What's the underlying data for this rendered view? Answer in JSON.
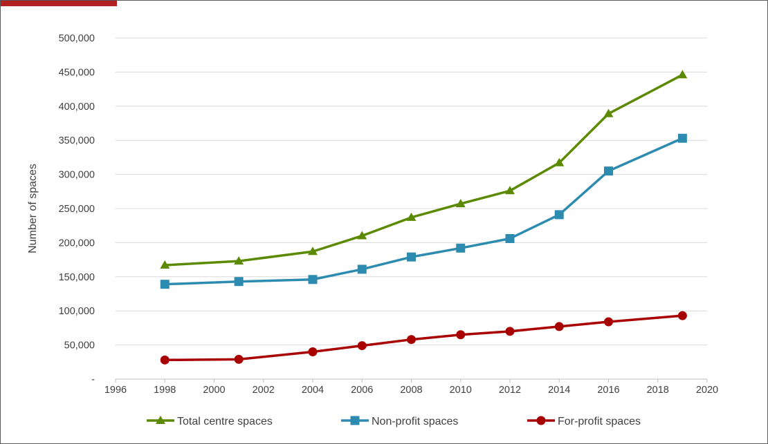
{
  "colors": {
    "total": "#5b8a00",
    "nonprofit": "#2e8bb0",
    "forprofit": "#a80000",
    "grid": "#d9d9d9",
    "accent_tab": "#b22222"
  },
  "chart_data": {
    "type": "line",
    "title": "",
    "xlabel": "",
    "ylabel": "Number of spaces",
    "xlim": [
      1996,
      2020
    ],
    "ylim": [
      0,
      500000
    ],
    "x_ticks": [
      1996,
      1998,
      2000,
      2002,
      2004,
      2006,
      2008,
      2010,
      2012,
      2014,
      2016,
      2018,
      2020
    ],
    "x_tick_labels": [
      "1996",
      "1998",
      "2000",
      "2002",
      "2004",
      "2006",
      "2008",
      "2010",
      "2012",
      "2014",
      "2016",
      "2018",
      "2020"
    ],
    "y_ticks": [
      0,
      50000,
      100000,
      150000,
      200000,
      250000,
      300000,
      350000,
      400000,
      450000,
      500000
    ],
    "y_tick_labels": [
      "-",
      "50,000",
      "100,000",
      "150,000",
      "200,000",
      "250,000",
      "300,000",
      "350,000",
      "400,000",
      "450,000",
      "500,000"
    ],
    "grid": "horizontal",
    "legend_position": "bottom",
    "x": [
      1998,
      2001,
      2004,
      2006,
      2008,
      2010,
      2012,
      2014,
      2016,
      2019
    ],
    "series": [
      {
        "name": "Total centre spaces",
        "marker": "triangle",
        "color_key": "total",
        "values": [
          167000,
          173000,
          187000,
          210000,
          237000,
          257000,
          276000,
          317000,
          389000,
          446000
        ]
      },
      {
        "name": "Non-profit  spaces",
        "marker": "square",
        "color_key": "nonprofit",
        "values": [
          139000,
          143000,
          146000,
          161000,
          179000,
          192000,
          206000,
          241000,
          305000,
          353000
        ]
      },
      {
        "name": "For-profit  spaces",
        "marker": "circle",
        "color_key": "forprofit",
        "values": [
          28000,
          29000,
          40000,
          49000,
          58000,
          65000,
          70000,
          77000,
          84000,
          93000
        ]
      }
    ]
  }
}
